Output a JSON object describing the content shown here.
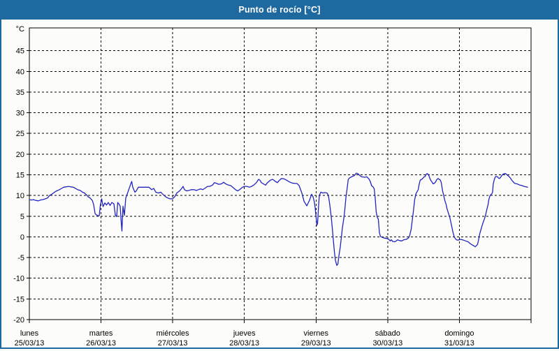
{
  "window": {
    "title": "Punto de rocío [°C]"
  },
  "colors": {
    "titlebar_bg": "#1e6aa0",
    "titlebar_text": "#ffffff",
    "frame_border": "#1e6aa0",
    "canvas_bg": "#fcfdfa",
    "axis_and_grid": "#000000",
    "series_line": "#2323bf"
  },
  "chart_data": {
    "type": "line",
    "title": "Punto de rocío [°C]",
    "ylabel": "°C",
    "ylim": [
      -20,
      50.5
    ],
    "y_tick_values": [
      45,
      40,
      35,
      30,
      25,
      20,
      15,
      10,
      5,
      0,
      -5,
      -10,
      -15,
      -20
    ],
    "xlim_days": [
      0,
      7
    ],
    "x_tick_labels": [
      {
        "weekday": "lunes",
        "date": "25/03/13"
      },
      {
        "weekday": "martes",
        "date": "26/03/13"
      },
      {
        "weekday": "miércoles",
        "date": "27/03/13"
      },
      {
        "weekday": "jueves",
        "date": "28/03/13"
      },
      {
        "weekday": "viernes",
        "date": "29/03/13"
      },
      {
        "weekday": "sábado",
        "date": "30/03/13"
      },
      {
        "weekday": "domingo",
        "date": "31/03/13"
      }
    ],
    "grid": "dashed",
    "legend_position": "none",
    "series": [
      {
        "name": "Punto de rocío",
        "unit": "°C",
        "x_unit": "days since lunes 25/03/13",
        "points": [
          [
            0.0,
            9.0
          ],
          [
            0.029,
            8.9
          ],
          [
            0.059,
            9.0
          ],
          [
            0.088,
            8.8
          ],
          [
            0.127,
            8.7
          ],
          [
            0.156,
            8.9
          ],
          [
            0.185,
            9.0
          ],
          [
            0.224,
            9.2
          ],
          [
            0.254,
            9.4
          ],
          [
            0.283,
            10.0
          ],
          [
            0.322,
            10.4
          ],
          [
            0.351,
            10.8
          ],
          [
            0.38,
            11.1
          ],
          [
            0.419,
            11.4
          ],
          [
            0.449,
            11.7
          ],
          [
            0.478,
            12.0
          ],
          [
            0.517,
            12.1
          ],
          [
            0.546,
            12.2
          ],
          [
            0.575,
            12.1
          ],
          [
            0.614,
            12.0
          ],
          [
            0.644,
            11.7
          ],
          [
            0.673,
            11.4
          ],
          [
            0.712,
            11.2
          ],
          [
            0.741,
            10.8
          ],
          [
            0.77,
            10.6
          ],
          [
            0.8,
            10.1
          ],
          [
            0.819,
            9.7
          ],
          [
            0.839,
            9.5
          ],
          [
            0.858,
            9.2
          ],
          [
            0.878,
            8.8
          ],
          [
            0.897,
            7.8
          ],
          [
            0.917,
            5.6
          ],
          [
            0.936,
            5.3
          ],
          [
            0.956,
            5.1
          ],
          [
            0.975,
            5.1
          ],
          [
            0.99,
            7.5
          ],
          [
            1.009,
            9.2
          ],
          [
            1.029,
            7.3
          ],
          [
            1.053,
            8.2
          ],
          [
            1.077,
            7.7
          ],
          [
            1.102,
            8.3
          ],
          [
            1.126,
            7.6
          ],
          [
            1.15,
            8.3
          ],
          [
            1.18,
            8.0
          ],
          [
            1.199,
            5.3
          ],
          [
            1.219,
            4.9
          ],
          [
            1.233,
            8.3
          ],
          [
            1.248,
            8.0
          ],
          [
            1.267,
            7.4
          ],
          [
            1.282,
            3.5
          ],
          [
            1.292,
            1.4
          ],
          [
            1.306,
            7.4
          ],
          [
            1.326,
            5.2
          ],
          [
            1.345,
            9.4
          ],
          [
            1.375,
            10.8
          ],
          [
            1.409,
            12.5
          ],
          [
            1.428,
            13.4
          ],
          [
            1.443,
            12.0
          ],
          [
            1.472,
            10.8
          ],
          [
            1.492,
            11.1
          ],
          [
            1.521,
            12.0
          ],
          [
            1.57,
            12.0
          ],
          [
            1.618,
            12.0
          ],
          [
            1.667,
            12.0
          ],
          [
            1.706,
            11.4
          ],
          [
            1.735,
            11.7
          ],
          [
            1.765,
            10.8
          ],
          [
            1.804,
            10.6
          ],
          [
            1.833,
            10.8
          ],
          [
            1.862,
            10.3
          ],
          [
            1.901,
            9.7
          ],
          [
            1.93,
            9.4
          ],
          [
            1.96,
            9.2
          ],
          [
            1.999,
            9.2
          ],
          [
            2.028,
            9.7
          ],
          [
            2.057,
            10.6
          ],
          [
            2.096,
            11.1
          ],
          [
            2.125,
            11.7
          ],
          [
            2.145,
            12.2
          ],
          [
            2.164,
            11.4
          ],
          [
            2.194,
            11.1
          ],
          [
            2.223,
            11.2
          ],
          [
            2.262,
            11.4
          ],
          [
            2.301,
            11.4
          ],
          [
            2.33,
            11.2
          ],
          [
            2.359,
            11.4
          ],
          [
            2.389,
            11.6
          ],
          [
            2.418,
            11.4
          ],
          [
            2.447,
            11.7
          ],
          [
            2.486,
            12.2
          ],
          [
            2.515,
            12.2
          ],
          [
            2.554,
            12.5
          ],
          [
            2.584,
            13.1
          ],
          [
            2.613,
            12.9
          ],
          [
            2.642,
            12.7
          ],
          [
            2.681,
            12.8
          ],
          [
            2.71,
            13.2
          ],
          [
            2.74,
            12.8
          ],
          [
            2.779,
            12.5
          ],
          [
            2.808,
            12.4
          ],
          [
            2.837,
            12.0
          ],
          [
            2.876,
            11.4
          ],
          [
            2.905,
            11.1
          ],
          [
            2.935,
            11.4
          ],
          [
            2.974,
            12.0
          ],
          [
            3.003,
            12.2
          ],
          [
            3.032,
            12.2
          ],
          [
            3.071,
            12.0
          ],
          [
            3.1,
            12.2
          ],
          [
            3.13,
            12.5
          ],
          [
            3.169,
            13.1
          ],
          [
            3.198,
            13.9
          ],
          [
            3.217,
            13.7
          ],
          [
            3.237,
            13.1
          ],
          [
            3.266,
            12.8
          ],
          [
            3.295,
            12.5
          ],
          [
            3.324,
            13.1
          ],
          [
            3.363,
            13.7
          ],
          [
            3.393,
            13.9
          ],
          [
            3.412,
            13.7
          ],
          [
            3.432,
            13.4
          ],
          [
            3.461,
            13.1
          ],
          [
            3.49,
            13.7
          ],
          [
            3.519,
            14.1
          ],
          [
            3.558,
            14.0
          ],
          [
            3.588,
            13.7
          ],
          [
            3.627,
            13.3
          ],
          [
            3.666,
            13.0
          ],
          [
            3.705,
            12.9
          ],
          [
            3.734,
            12.9
          ],
          [
            3.763,
            12.4
          ],
          [
            3.802,
            10.6
          ],
          [
            3.832,
            8.6
          ],
          [
            3.871,
            7.5
          ],
          [
            3.91,
            8.9
          ],
          [
            3.939,
            10.3
          ],
          [
            3.958,
            9.7
          ],
          [
            3.978,
            8.3
          ],
          [
            3.988,
            6.9
          ],
          [
            3.997,
            5.4
          ],
          [
            4.012,
            2.8
          ],
          [
            4.022,
            3.3
          ],
          [
            4.036,
            7.7
          ],
          [
            4.046,
            10.0
          ],
          [
            4.066,
            10.8
          ],
          [
            4.095,
            10.6
          ],
          [
            4.124,
            10.7
          ],
          [
            4.153,
            10.6
          ],
          [
            4.173,
            10.0
          ],
          [
            4.192,
            7.7
          ],
          [
            4.212,
            4.9
          ],
          [
            4.226,
            2.2
          ],
          [
            4.241,
            -0.7
          ],
          [
            4.256,
            -3.5
          ],
          [
            4.27,
            -5.7
          ],
          [
            4.29,
            -6.9
          ],
          [
            4.304,
            -6.6
          ],
          [
            4.319,
            -4.6
          ],
          [
            4.338,
            -2.4
          ],
          [
            4.353,
            -0.2
          ],
          [
            4.368,
            2.2
          ],
          [
            4.387,
            4.4
          ],
          [
            4.402,
            6.6
          ],
          [
            4.416,
            9.4
          ],
          [
            4.436,
            12.0
          ],
          [
            4.45,
            13.9
          ],
          [
            4.465,
            14.2
          ],
          [
            4.494,
            14.5
          ],
          [
            4.533,
            14.8
          ],
          [
            4.563,
            15.4
          ],
          [
            4.582,
            15.3
          ],
          [
            4.611,
            14.8
          ],
          [
            4.64,
            14.5
          ],
          [
            4.679,
            14.4
          ],
          [
            4.709,
            14.5
          ],
          [
            4.738,
            14.0
          ],
          [
            4.757,
            13.4
          ],
          [
            4.777,
            12.3
          ],
          [
            4.796,
            12.1
          ],
          [
            4.811,
            11.6
          ],
          [
            4.825,
            9.5
          ],
          [
            4.84,
            6.0
          ],
          [
            4.855,
            4.7
          ],
          [
            4.869,
            4.3
          ],
          [
            4.884,
            1.0
          ],
          [
            4.899,
            0.1
          ],
          [
            4.923,
            -0.1
          ],
          [
            4.952,
            -0.3
          ],
          [
            4.991,
            -0.4
          ],
          [
            5.021,
            -0.7
          ],
          [
            5.035,
            -1.0
          ],
          [
            5.05,
            -0.7
          ],
          [
            5.069,
            -1.1
          ],
          [
            5.099,
            -1.2
          ],
          [
            5.118,
            -1.0
          ],
          [
            5.137,
            -0.7
          ],
          [
            5.167,
            -0.9
          ],
          [
            5.196,
            -1.0
          ],
          [
            5.225,
            -0.7
          ],
          [
            5.259,
            -0.6
          ],
          [
            5.279,
            -0.4
          ],
          [
            5.293,
            -0.2
          ],
          [
            5.308,
            0.4
          ],
          [
            5.327,
            1.8
          ],
          [
            5.342,
            3.9
          ],
          [
            5.357,
            6.0
          ],
          [
            5.376,
            8.9
          ],
          [
            5.391,
            10.3
          ],
          [
            5.406,
            10.8
          ],
          [
            5.425,
            11.4
          ],
          [
            5.44,
            12.8
          ],
          [
            5.454,
            13.7
          ],
          [
            5.474,
            13.9
          ],
          [
            5.488,
            14.1
          ],
          [
            5.508,
            14.5
          ],
          [
            5.522,
            14.6
          ],
          [
            5.537,
            15.1
          ],
          [
            5.552,
            15.3
          ],
          [
            5.571,
            15.0
          ],
          [
            5.586,
            14.2
          ],
          [
            5.6,
            13.7
          ],
          [
            5.62,
            13.2
          ],
          [
            5.634,
            12.8
          ],
          [
            5.649,
            12.9
          ],
          [
            5.669,
            13.3
          ],
          [
            5.683,
            13.8
          ],
          [
            5.703,
            14.1
          ],
          [
            5.717,
            13.9
          ],
          [
            5.732,
            13.8
          ],
          [
            5.746,
            13.2
          ],
          [
            5.766,
            11.1
          ],
          [
            5.781,
            10.0
          ],
          [
            5.795,
            8.9
          ],
          [
            5.815,
            7.8
          ],
          [
            5.829,
            6.7
          ],
          [
            5.844,
            5.9
          ],
          [
            5.863,
            4.9
          ],
          [
            5.878,
            3.8
          ],
          [
            5.893,
            2.5
          ],
          [
            5.912,
            1.0
          ],
          [
            5.927,
            0.1
          ],
          [
            5.941,
            -0.4
          ],
          [
            5.961,
            -0.7
          ],
          [
            5.976,
            -0.8
          ],
          [
            5.995,
            -0.7
          ],
          [
            6.024,
            -0.6
          ],
          [
            6.059,
            -0.8
          ],
          [
            6.088,
            -1.0
          ],
          [
            6.122,
            -1.2
          ],
          [
            6.156,
            -1.7
          ],
          [
            6.185,
            -2.0
          ],
          [
            6.205,
            -2.2
          ],
          [
            6.22,
            -2.4
          ],
          [
            6.234,
            -2.2
          ],
          [
            6.254,
            -1.8
          ],
          [
            6.268,
            -0.7
          ],
          [
            6.283,
            0.7
          ],
          [
            6.302,
            1.8
          ],
          [
            6.317,
            2.7
          ],
          [
            6.332,
            3.5
          ],
          [
            6.351,
            4.4
          ],
          [
            6.366,
            5.3
          ],
          [
            6.38,
            6.4
          ],
          [
            6.4,
            7.8
          ],
          [
            6.41,
            8.9
          ],
          [
            6.424,
            9.8
          ],
          [
            6.439,
            10.2
          ],
          [
            6.453,
            10.4
          ],
          [
            6.463,
            10.8
          ],
          [
            6.473,
            12.8
          ],
          [
            6.488,
            13.9
          ],
          [
            6.502,
            14.5
          ],
          [
            6.517,
            14.6
          ],
          [
            6.532,
            14.5
          ],
          [
            6.546,
            14.2
          ],
          [
            6.561,
            14.1
          ],
          [
            6.58,
            14.5
          ],
          [
            6.6,
            15.0
          ],
          [
            6.614,
            15.2
          ],
          [
            6.629,
            15.3
          ],
          [
            6.644,
            15.3
          ],
          [
            6.658,
            15.1
          ],
          [
            6.678,
            14.8
          ],
          [
            6.697,
            14.5
          ],
          [
            6.712,
            14.2
          ],
          [
            6.727,
            13.8
          ],
          [
            6.746,
            13.4
          ],
          [
            6.761,
            13.1
          ],
          [
            6.775,
            12.9
          ],
          [
            6.805,
            12.8
          ],
          [
            6.844,
            12.5
          ],
          [
            6.873,
            12.4
          ],
          [
            6.902,
            12.2
          ],
          [
            6.931,
            12.1
          ],
          [
            6.951,
            12.0
          ]
        ]
      }
    ]
  }
}
